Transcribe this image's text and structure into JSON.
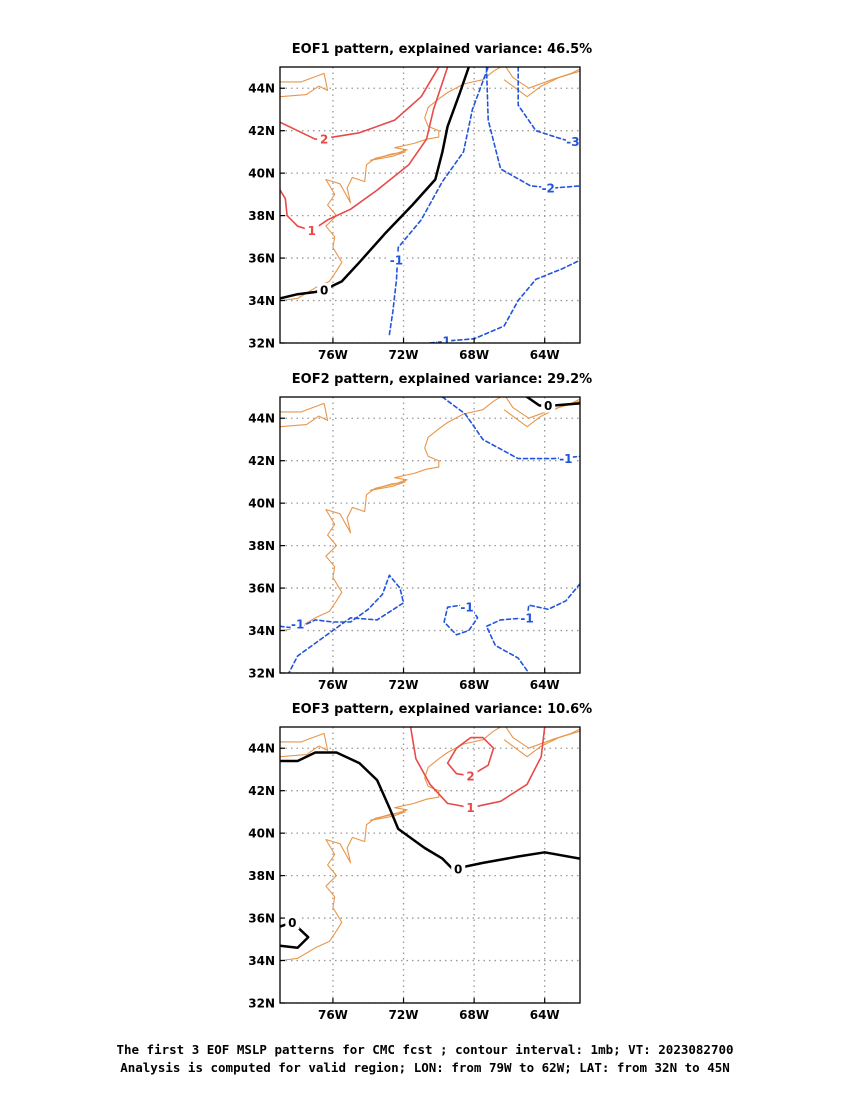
{
  "chart_data": [
    {
      "type": "contour",
      "title": "EOF1 pattern, explained variance: 46.5%",
      "xlim": [
        -79,
        -62
      ],
      "ylim": [
        32,
        45
      ],
      "x_ticks": [
        "76W",
        "72W",
        "68W",
        "64W"
      ],
      "y_ticks": [
        "32N",
        "34N",
        "36N",
        "38N",
        "40N",
        "42N",
        "44N"
      ],
      "grid": true,
      "contours": [
        {
          "level": 2,
          "color": "#e84a4a",
          "dash": false,
          "label": {
            "text": "2",
            "lon": -76.5,
            "lat": 41.6
          },
          "points": [
            [
              -79,
              42.4
            ],
            [
              -78,
              42.0
            ],
            [
              -77,
              41.6
            ],
            [
              -76,
              41.7
            ],
            [
              -74.5,
              41.9
            ],
            [
              -72.5,
              42.5
            ],
            [
              -71,
              43.6
            ],
            [
              -70,
              45
            ]
          ]
        },
        {
          "level": 1,
          "color": "#e84a4a",
          "dash": false,
          "label": {
            "text": "1",
            "lon": -77.2,
            "lat": 37.3
          },
          "points": [
            [
              -79,
              39.2
            ],
            [
              -78.7,
              38.8
            ],
            [
              -78.6,
              38.0
            ],
            [
              -78,
              37.5
            ],
            [
              -77.2,
              37.3
            ],
            [
              -76.3,
              37.8
            ],
            [
              -75,
              38.3
            ],
            [
              -73.5,
              39.2
            ],
            [
              -71.7,
              40.4
            ],
            [
              -70.7,
              41.6
            ],
            [
              -70.3,
              43
            ],
            [
              -69.5,
              45
            ]
          ]
        },
        {
          "level": 0,
          "color": "#000000",
          "dash": false,
          "width": 2.5,
          "label": {
            "text": "0",
            "lon": -76.5,
            "lat": 34.5
          },
          "points": [
            [
              -79,
              34.1
            ],
            [
              -78,
              34.3
            ],
            [
              -77,
              34.4
            ],
            [
              -76.5,
              34.5
            ],
            [
              -75.5,
              34.9
            ],
            [
              -74.5,
              35.8
            ],
            [
              -73,
              37.2
            ],
            [
              -71.5,
              38.5
            ],
            [
              -70.2,
              39.7
            ],
            [
              -69.8,
              41
            ],
            [
              -69.5,
              42.2
            ],
            [
              -68.8,
              43.8
            ],
            [
              -68.3,
              45
            ]
          ]
        },
        {
          "level": -1,
          "color": "#2255dd",
          "dash": true,
          "label": {
            "text": "-1",
            "lon": -72.4,
            "lat": 35.9
          },
          "points": [
            [
              -72.8,
              32.4
            ],
            [
              -72.6,
              33.5
            ],
            [
              -72.4,
              35
            ],
            [
              -72.3,
              36.5
            ],
            [
              -71,
              37.8
            ],
            [
              -69.8,
              39.6
            ],
            [
              -68.6,
              41
            ],
            [
              -68.1,
              43
            ],
            [
              -67.2,
              45
            ]
          ]
        },
        {
          "level": -1,
          "color": "#2255dd",
          "dash": true,
          "label": {
            "text": "-1",
            "lon": -69.7,
            "lat": 32.1
          },
          "points": [
            [
              -70.5,
              32
            ],
            [
              -69.5,
              32.1
            ],
            [
              -68,
              32.2
            ],
            [
              -66.3,
              32.8
            ],
            [
              -65.5,
              34
            ],
            [
              -64.5,
              35
            ],
            [
              -63,
              35.5
            ],
            [
              -62,
              35.9
            ]
          ]
        },
        {
          "level": -2,
          "color": "#2255dd",
          "dash": true,
          "label": {
            "text": "-2",
            "lon": -63.8,
            "lat": 39.3
          },
          "points": [
            [
              -67.3,
              45
            ],
            [
              -67.2,
              42.5
            ],
            [
              -66.5,
              40.2
            ],
            [
              -64.8,
              39.4
            ],
            [
              -63.5,
              39.3
            ],
            [
              -62,
              39.4
            ]
          ]
        },
        {
          "level": -3,
          "color": "#2255dd",
          "dash": true,
          "label": {
            "text": "-3",
            "lon": -62.4,
            "lat": 41.5
          },
          "points": [
            [
              -65.5,
              45
            ],
            [
              -65.5,
              43.2
            ],
            [
              -64.5,
              42
            ],
            [
              -63,
              41.6
            ],
            [
              -62,
              41.4
            ]
          ]
        }
      ]
    },
    {
      "type": "contour",
      "title": "EOF2 pattern, explained variance: 29.2%",
      "xlim": [
        -79,
        -62
      ],
      "ylim": [
        32,
        45
      ],
      "x_ticks": [
        "76W",
        "72W",
        "68W",
        "64W"
      ],
      "y_ticks": [
        "32N",
        "34N",
        "36N",
        "38N",
        "40N",
        "42N",
        "44N"
      ],
      "grid": true,
      "contours": [
        {
          "level": 0,
          "color": "#000000",
          "dash": false,
          "width": 2.5,
          "label": {
            "text": "0",
            "lon": -63.8,
            "lat": 44.6
          },
          "points": [
            [
              -65,
              45
            ],
            [
              -64.3,
              44.6
            ],
            [
              -63.5,
              44.6
            ],
            [
              -62,
              44.7
            ]
          ]
        },
        {
          "level": -1,
          "color": "#2255dd",
          "dash": true,
          "label": {
            "text": "-1",
            "lon": -62.8,
            "lat": 42.1
          },
          "points": [
            [
              -69.8,
              45
            ],
            [
              -68.5,
              44.2
            ],
            [
              -67.5,
              43
            ],
            [
              -65.5,
              42.1
            ],
            [
              -63.5,
              42.1
            ],
            [
              -62,
              42.2
            ]
          ]
        },
        {
          "level": -1,
          "color": "#2255dd",
          "dash": true,
          "label": {
            "text": "-1",
            "lon": -78,
            "lat": 34.3
          },
          "points": [
            [
              -79,
              34.2
            ],
            [
              -78,
              34.1
            ],
            [
              -77,
              34.5
            ],
            [
              -76,
              34.4
            ],
            [
              -75,
              34.4
            ],
            [
              -74,
              35
            ],
            [
              -73.2,
              35.7
            ],
            [
              -72.8,
              36.6
            ],
            [
              -72.2,
              36
            ],
            [
              -72,
              35.3
            ],
            [
              -73.5,
              34.5
            ],
            [
              -75,
              34.6
            ],
            [
              -76,
              34
            ],
            [
              -78,
              32.8
            ],
            [
              -78.5,
              32
            ]
          ]
        },
        {
          "level": -1,
          "color": "#2255dd",
          "dash": true,
          "label": {
            "text": "-1",
            "lon": -68.4,
            "lat": 35.1
          },
          "points": [
            [
              -68.7,
              35.2
            ],
            [
              -68.4,
              35.3
            ],
            [
              -67.8,
              34.6
            ],
            [
              -68.3,
              34
            ],
            [
              -69,
              33.8
            ],
            [
              -69.7,
              34.4
            ],
            [
              -69.5,
              35.1
            ],
            [
              -68.7,
              35.2
            ]
          ]
        },
        {
          "level": -1,
          "color": "#2255dd",
          "dash": true,
          "label": {
            "text": "-1",
            "lon": -65,
            "lat": 34.6
          },
          "points": [
            [
              -62,
              36.2
            ],
            [
              -62.8,
              35.4
            ],
            [
              -63.8,
              35
            ],
            [
              -64.9,
              35.2
            ],
            [
              -65,
              34.6
            ],
            [
              -66.5,
              34.5
            ],
            [
              -67.3,
              34.2
            ],
            [
              -66.8,
              33.3
            ],
            [
              -65.5,
              32.7
            ],
            [
              -64.9,
              32
            ]
          ]
        }
      ]
    },
    {
      "type": "contour",
      "title": "EOF3 pattern, explained variance: 10.6%",
      "xlim": [
        -79,
        -62
      ],
      "ylim": [
        32,
        45
      ],
      "x_ticks": [
        "76W",
        "72W",
        "68W",
        "64W"
      ],
      "y_ticks": [
        "32N",
        "34N",
        "36N",
        "38N",
        "40N",
        "42N",
        "44N"
      ],
      "grid": true,
      "contours": [
        {
          "level": 2,
          "color": "#e84a4a",
          "dash": false,
          "label": {
            "text": "2",
            "lon": -68.2,
            "lat": 42.7
          },
          "points": [
            [
              -69.5,
              43.3
            ],
            [
              -69,
              44
            ],
            [
              -68.2,
              44.5
            ],
            [
              -67.5,
              44.5
            ],
            [
              -66.9,
              44
            ],
            [
              -67.2,
              43.2
            ],
            [
              -68.2,
              42.7
            ],
            [
              -69,
              42.8
            ],
            [
              -69.5,
              43.3
            ]
          ]
        },
        {
          "level": 1,
          "color": "#e84a4a",
          "dash": false,
          "label": {
            "text": "1",
            "lon": -68.2,
            "lat": 41.2
          },
          "points": [
            [
              -71.6,
              45
            ],
            [
              -71.3,
              43.5
            ],
            [
              -70.5,
              42.3
            ],
            [
              -69.5,
              41.4
            ],
            [
              -68.2,
              41.2
            ],
            [
              -66.5,
              41.5
            ],
            [
              -65,
              42.3
            ],
            [
              -64.2,
              43.6
            ],
            [
              -64,
              45
            ]
          ]
        },
        {
          "level": 0,
          "color": "#000000",
          "dash": false,
          "width": 2.5,
          "label": {
            "text": "0",
            "lon": -68.9,
            "lat": 38.3
          },
          "points": [
            [
              -79,
              43.4
            ],
            [
              -78,
              43.4
            ],
            [
              -77,
              43.8
            ],
            [
              -75.8,
              43.8
            ],
            [
              -74.5,
              43.3
            ],
            [
              -73.5,
              42.5
            ],
            [
              -72.8,
              41.2
            ],
            [
              -72.3,
              40.2
            ],
            [
              -70.8,
              39.3
            ],
            [
              -69.8,
              38.8
            ],
            [
              -69.2,
              38.3
            ],
            [
              -67.5,
              38.6
            ],
            [
              -65.5,
              38.9
            ],
            [
              -64,
              39.1
            ],
            [
              -62,
              38.8
            ]
          ]
        },
        {
          "level": 0,
          "color": "#000000",
          "dash": false,
          "width": 2.5,
          "label": {
            "text": "0",
            "lon": -78.3,
            "lat": 35.8
          },
          "points": [
            [
              -79,
              35.6
            ],
            [
              -78.3,
              35.8
            ],
            [
              -77.4,
              35.1
            ],
            [
              -78,
              34.6
            ],
            [
              -79,
              34.7
            ]
          ]
        }
      ]
    }
  ],
  "caption": {
    "line1": "The first 3 EOF MSLP patterns for CMC fcst ; contour interval: 1mb; VT: 2023082700",
    "line2": "Analysis is computed for valid region; LON: from 79W to 62W; LAT: from 32N to 45N"
  },
  "colors": {
    "coast": "#e8964a",
    "positive": "#e84a4a",
    "negative": "#2255dd",
    "zero": "#000000",
    "grid": "#999999"
  }
}
